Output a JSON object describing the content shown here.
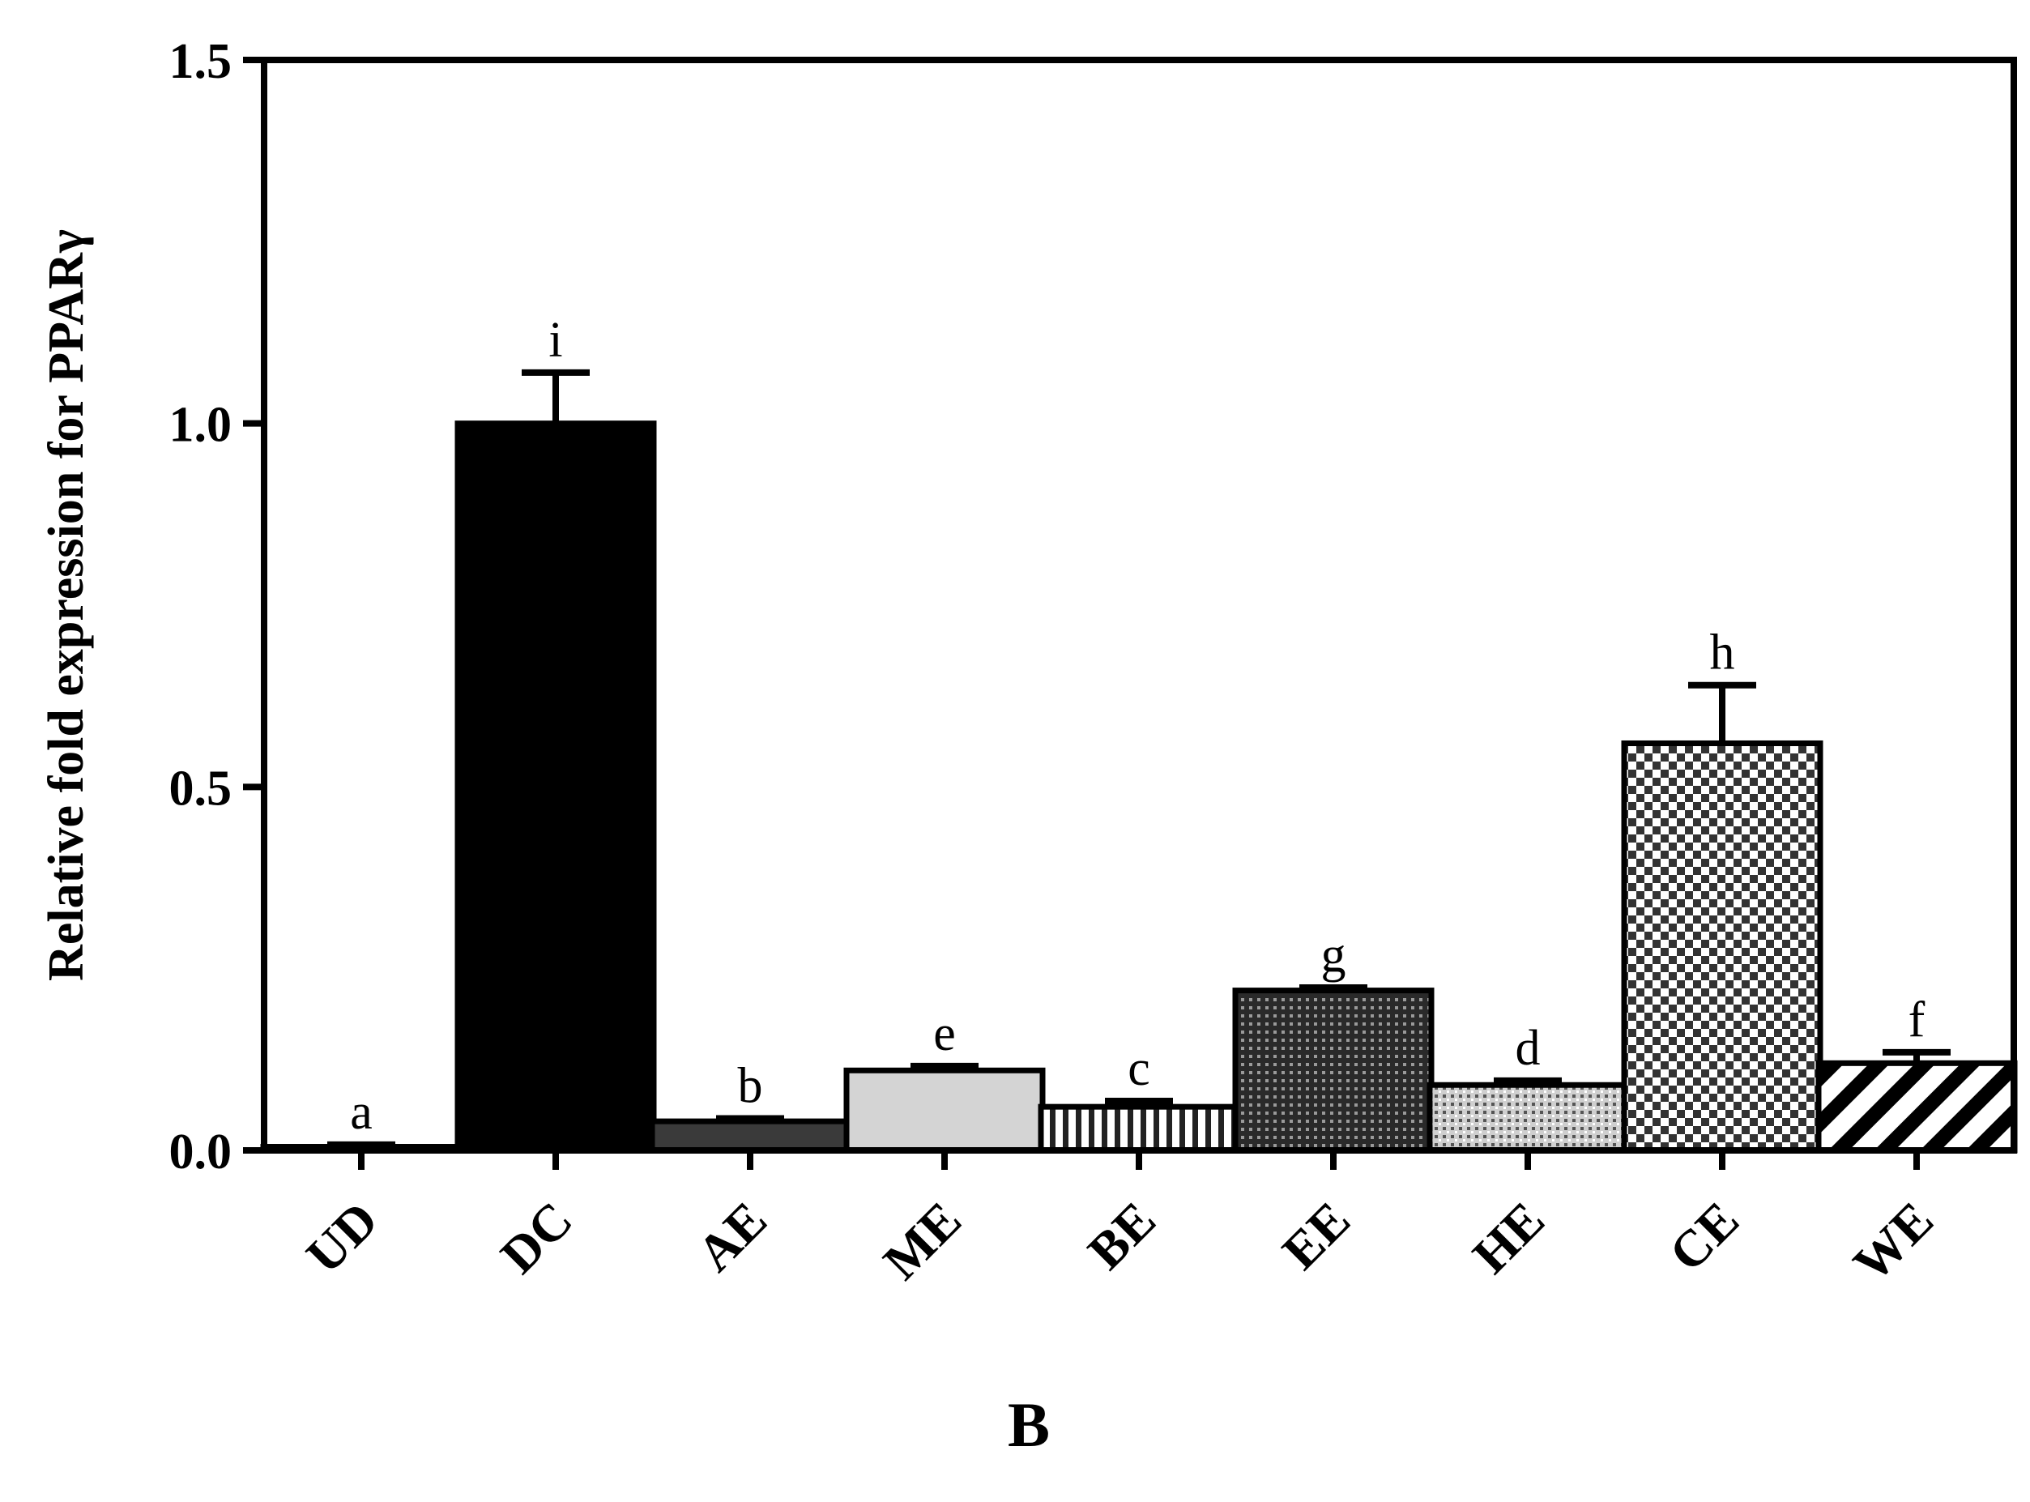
{
  "chart_data": {
    "type": "bar",
    "title": "",
    "xlabel": "",
    "ylabel": "Relative fold expression for PPARγ",
    "ylim": [
      0,
      1.5
    ],
    "yticks": [
      "0.0",
      "0.5",
      "1.0",
      "1.5"
    ],
    "grid": false,
    "legend": "none",
    "categories": [
      "UD",
      "DC",
      "AE",
      "ME",
      "BE",
      "EE",
      "HE",
      "CE",
      "WE"
    ],
    "values": [
      0.005,
      1.0,
      0.04,
      0.11,
      0.06,
      0.22,
      0.09,
      0.56,
      0.12
    ],
    "errors": [
      0.003,
      0.07,
      0.004,
      0.006,
      0.008,
      0.004,
      0.006,
      0.08,
      0.015
    ],
    "significance_letters": [
      "a",
      "i",
      "b",
      "e",
      "c",
      "g",
      "d",
      "h",
      "f"
    ],
    "bar_fills": [
      "#000000",
      "#000000",
      "#3a3a3a",
      "#d4d4d4",
      "vertical-stripes",
      "dense-dots",
      "light-dots",
      "checkerboard",
      "diagonal-hatch"
    ],
    "panel_label": "B"
  }
}
